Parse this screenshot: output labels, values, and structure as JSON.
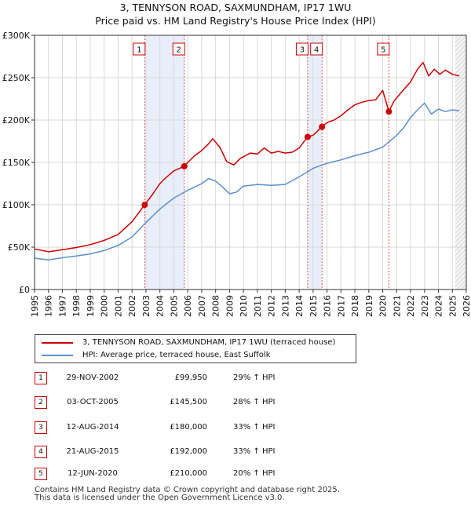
{
  "title_line1": "3, TENNYSON ROAD, SAXMUNDHAM, IP17 1WU",
  "title_line2": "Price paid vs. HM Land Registry's House Price Index (HPI)",
  "colors": {
    "property": "#cc0000",
    "hpi": "#5b8fcc",
    "band": "#e8eefa",
    "grid": "#d9d9d9",
    "vline": "#e05555"
  },
  "legend": {
    "property_label": "3, TENNYSON ROAD, SAXMUNDHAM, IP17 1WU (terraced house)",
    "hpi_label": "HPI: Average price, terraced house, East Suffolk"
  },
  "transactions": [
    {
      "num": "1",
      "date": "29-NOV-2002",
      "price": "£99,950",
      "hpi": "29% ↑ HPI"
    },
    {
      "num": "2",
      "date": "03-OCT-2005",
      "price": "£145,500",
      "hpi": "28% ↑ HPI"
    },
    {
      "num": "3",
      "date": "12-AUG-2014",
      "price": "£180,000",
      "hpi": "33% ↑ HPI"
    },
    {
      "num": "4",
      "date": "21-AUG-2015",
      "price": "£192,000",
      "hpi": "33% ↑ HPI"
    },
    {
      "num": "5",
      "date": "12-JUN-2020",
      "price": "£210,000",
      "hpi": "20% ↑ HPI"
    }
  ],
  "footer_line1": "Contains HM Land Registry data © Crown copyright and database right 2025.",
  "footer_line2": "This data is licensed under the Open Government Licence v3.0.",
  "chart_data": {
    "type": "line",
    "title": "3, TENNYSON ROAD, SAXMUNDHAM, IP17 1WU",
    "subtitle": "Price paid vs. HM Land Registry's House Price Index (HPI)",
    "xlim": [
      1995,
      2026
    ],
    "ylim": [
      0,
      300000
    ],
    "x_ticks": [
      1995,
      1996,
      1997,
      1998,
      1999,
      2000,
      2001,
      2002,
      2003,
      2004,
      2005,
      2006,
      2007,
      2008,
      2009,
      2010,
      2011,
      2012,
      2013,
      2014,
      2015,
      2016,
      2017,
      2018,
      2019,
      2020,
      2021,
      2022,
      2023,
      2024,
      2025,
      2026
    ],
    "y_ticks": [
      {
        "value": 0,
        "label": "£0"
      },
      {
        "value": 50000,
        "label": "£50K"
      },
      {
        "value": 100000,
        "label": "£100K"
      },
      {
        "value": 150000,
        "label": "£150K"
      },
      {
        "value": 200000,
        "label": "£200K"
      },
      {
        "value": 250000,
        "label": "£250K"
      },
      {
        "value": 300000,
        "label": "£300K"
      }
    ],
    "grid": true,
    "shaded_bands": [
      [
        2002.91,
        2005.75
      ],
      [
        2014.61,
        2015.64
      ]
    ],
    "hatched_from": 2025.2,
    "series": [
      {
        "name": "3, TENNYSON ROAD, SAXMUNDHAM, IP17 1WU (terraced house)",
        "x": [
          1995,
          1996,
          1997,
          1998,
          1999,
          2000,
          2001,
          2002,
          2002.91,
          2003.5,
          2004,
          2004.5,
          2005,
          2005.75,
          2006,
          2006.5,
          2007,
          2007.5,
          2007.8,
          2008.3,
          2008.8,
          2009.3,
          2009.8,
          2010.5,
          2011,
          2011.5,
          2012,
          2012.5,
          2013,
          2013.5,
          2014,
          2014.61,
          2015,
          2015.64,
          2016,
          2016.5,
          2017,
          2017.5,
          2018,
          2018.5,
          2019,
          2019.5,
          2020,
          2020.44,
          2020.8,
          2021.3,
          2022,
          2022.5,
          2022.9,
          2023.3,
          2023.7,
          2024.1,
          2024.5,
          2025,
          2025.5
        ],
        "y": [
          48000,
          44500,
          47000,
          49500,
          53000,
          58000,
          65000,
          80000,
          99950,
          113000,
          125000,
          133000,
          140000,
          145500,
          150000,
          158000,
          164000,
          172000,
          178000,
          168000,
          151000,
          147000,
          155000,
          161000,
          160000,
          167000,
          161000,
          163000,
          161000,
          162000,
          167000,
          180000,
          182000,
          192000,
          197000,
          200000,
          205000,
          212000,
          218000,
          221000,
          223000,
          224000,
          235000,
          210000,
          222000,
          232000,
          245000,
          260000,
          268000,
          252000,
          260000,
          254000,
          259000,
          254000,
          252000
        ]
      },
      {
        "name": "HPI: Average price, terraced house, East Suffolk",
        "x": [
          1995,
          1996,
          1997,
          1998,
          1999,
          2000,
          2001,
          2002,
          2003,
          2004,
          2005,
          2006,
          2007,
          2007.5,
          2008,
          2008.5,
          2009,
          2009.5,
          2010,
          2011,
          2012,
          2013,
          2014,
          2015,
          2016,
          2017,
          2018,
          2019,
          2020,
          2021,
          2021.5,
          2022,
          2022.5,
          2023,
          2023.5,
          2024,
          2024.5,
          2025,
          2025.5
        ],
        "y": [
          37000,
          35000,
          37500,
          39500,
          42000,
          46000,
          52000,
          62000,
          79000,
          95000,
          108000,
          117000,
          125000,
          131000,
          128000,
          121000,
          113000,
          115000,
          122000,
          124000,
          123000,
          124000,
          133000,
          143000,
          149000,
          153000,
          158000,
          162000,
          168000,
          182000,
          191000,
          203000,
          212000,
          220000,
          207000,
          213000,
          210000,
          212000,
          211000
        ]
      }
    ],
    "markers": [
      {
        "label": "1",
        "x": 2002.91,
        "y": 99950
      },
      {
        "label": "2",
        "x": 2005.75,
        "y": 145500
      },
      {
        "label": "3",
        "x": 2014.61,
        "y": 180000
      },
      {
        "label": "4",
        "x": 2015.64,
        "y": 192000
      },
      {
        "label": "5",
        "x": 2020.44,
        "y": 210000
      }
    ]
  }
}
